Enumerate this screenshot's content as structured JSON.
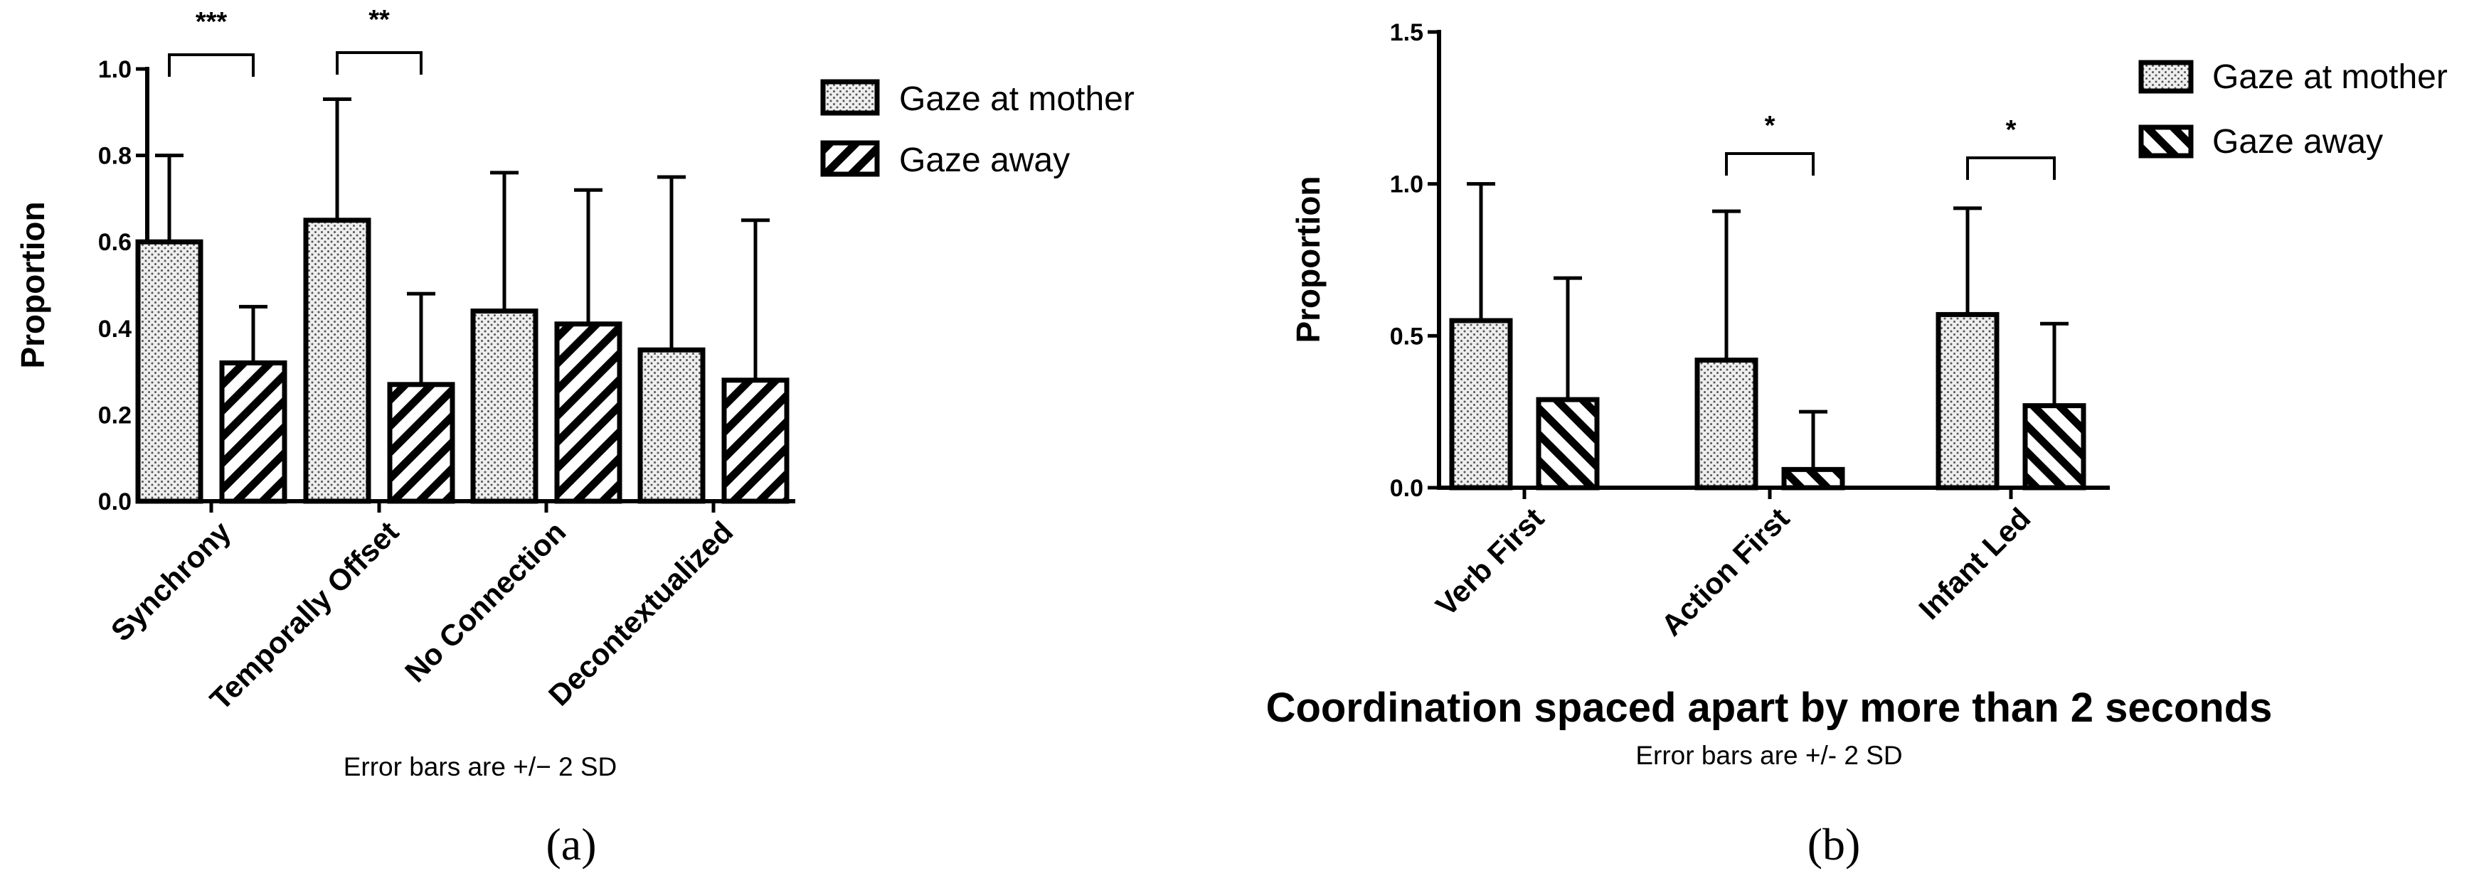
{
  "chart_data": [
    {
      "type": "bar",
      "panel_label": "(a)",
      "ylabel": "Proportion",
      "ylim": [
        0,
        1.0
      ],
      "yticks": [
        "0.0",
        "0.2",
        "0.4",
        "0.6",
        "0.8",
        "1.0"
      ],
      "categories": [
        "Synchrony",
        "Temporally Offset",
        "No Connection",
        "Decontextualized"
      ],
      "series": [
        {
          "name": "Gaze at mother",
          "pattern": "dots",
          "values": [
            0.6,
            0.65,
            0.44,
            0.35
          ],
          "error": [
            0.2,
            0.28,
            0.32,
            0.4
          ]
        },
        {
          "name": "Gaze away",
          "pattern": "hatch-forward",
          "values": [
            0.32,
            0.27,
            0.41,
            0.28
          ],
          "error": [
            0.13,
            0.21,
            0.31,
            0.37
          ]
        }
      ],
      "significance": [
        {
          "category": "Synchrony",
          "label": "***"
        },
        {
          "category": "Temporally Offset",
          "label": "**"
        }
      ],
      "note": "Error bars are +/− 2 SD",
      "legend_position": "top-right"
    },
    {
      "type": "bar",
      "panel_label": "(b)",
      "title": "Coordination spaced apart by more than 2 seconds",
      "ylabel": "Proportion",
      "ylim": [
        0,
        1.5
      ],
      "yticks": [
        "0.0",
        "0.5",
        "1.0",
        "1.5"
      ],
      "categories": [
        "Verb First",
        "Action First",
        "Infant Led"
      ],
      "series": [
        {
          "name": "Gaze at mother",
          "pattern": "dots",
          "values": [
            0.55,
            0.42,
            0.57
          ],
          "error": [
            0.45,
            0.49,
            0.35
          ]
        },
        {
          "name": "Gaze away",
          "pattern": "hatch-back",
          "values": [
            0.29,
            0.06,
            0.27
          ],
          "error": [
            0.4,
            0.19,
            0.27
          ]
        }
      ],
      "significance": [
        {
          "category": "Action First",
          "label": "*"
        },
        {
          "category": "Infant Led",
          "label": "*"
        }
      ],
      "note": "Error bars are +/- 2 SD",
      "legend_position": "top-right"
    }
  ]
}
